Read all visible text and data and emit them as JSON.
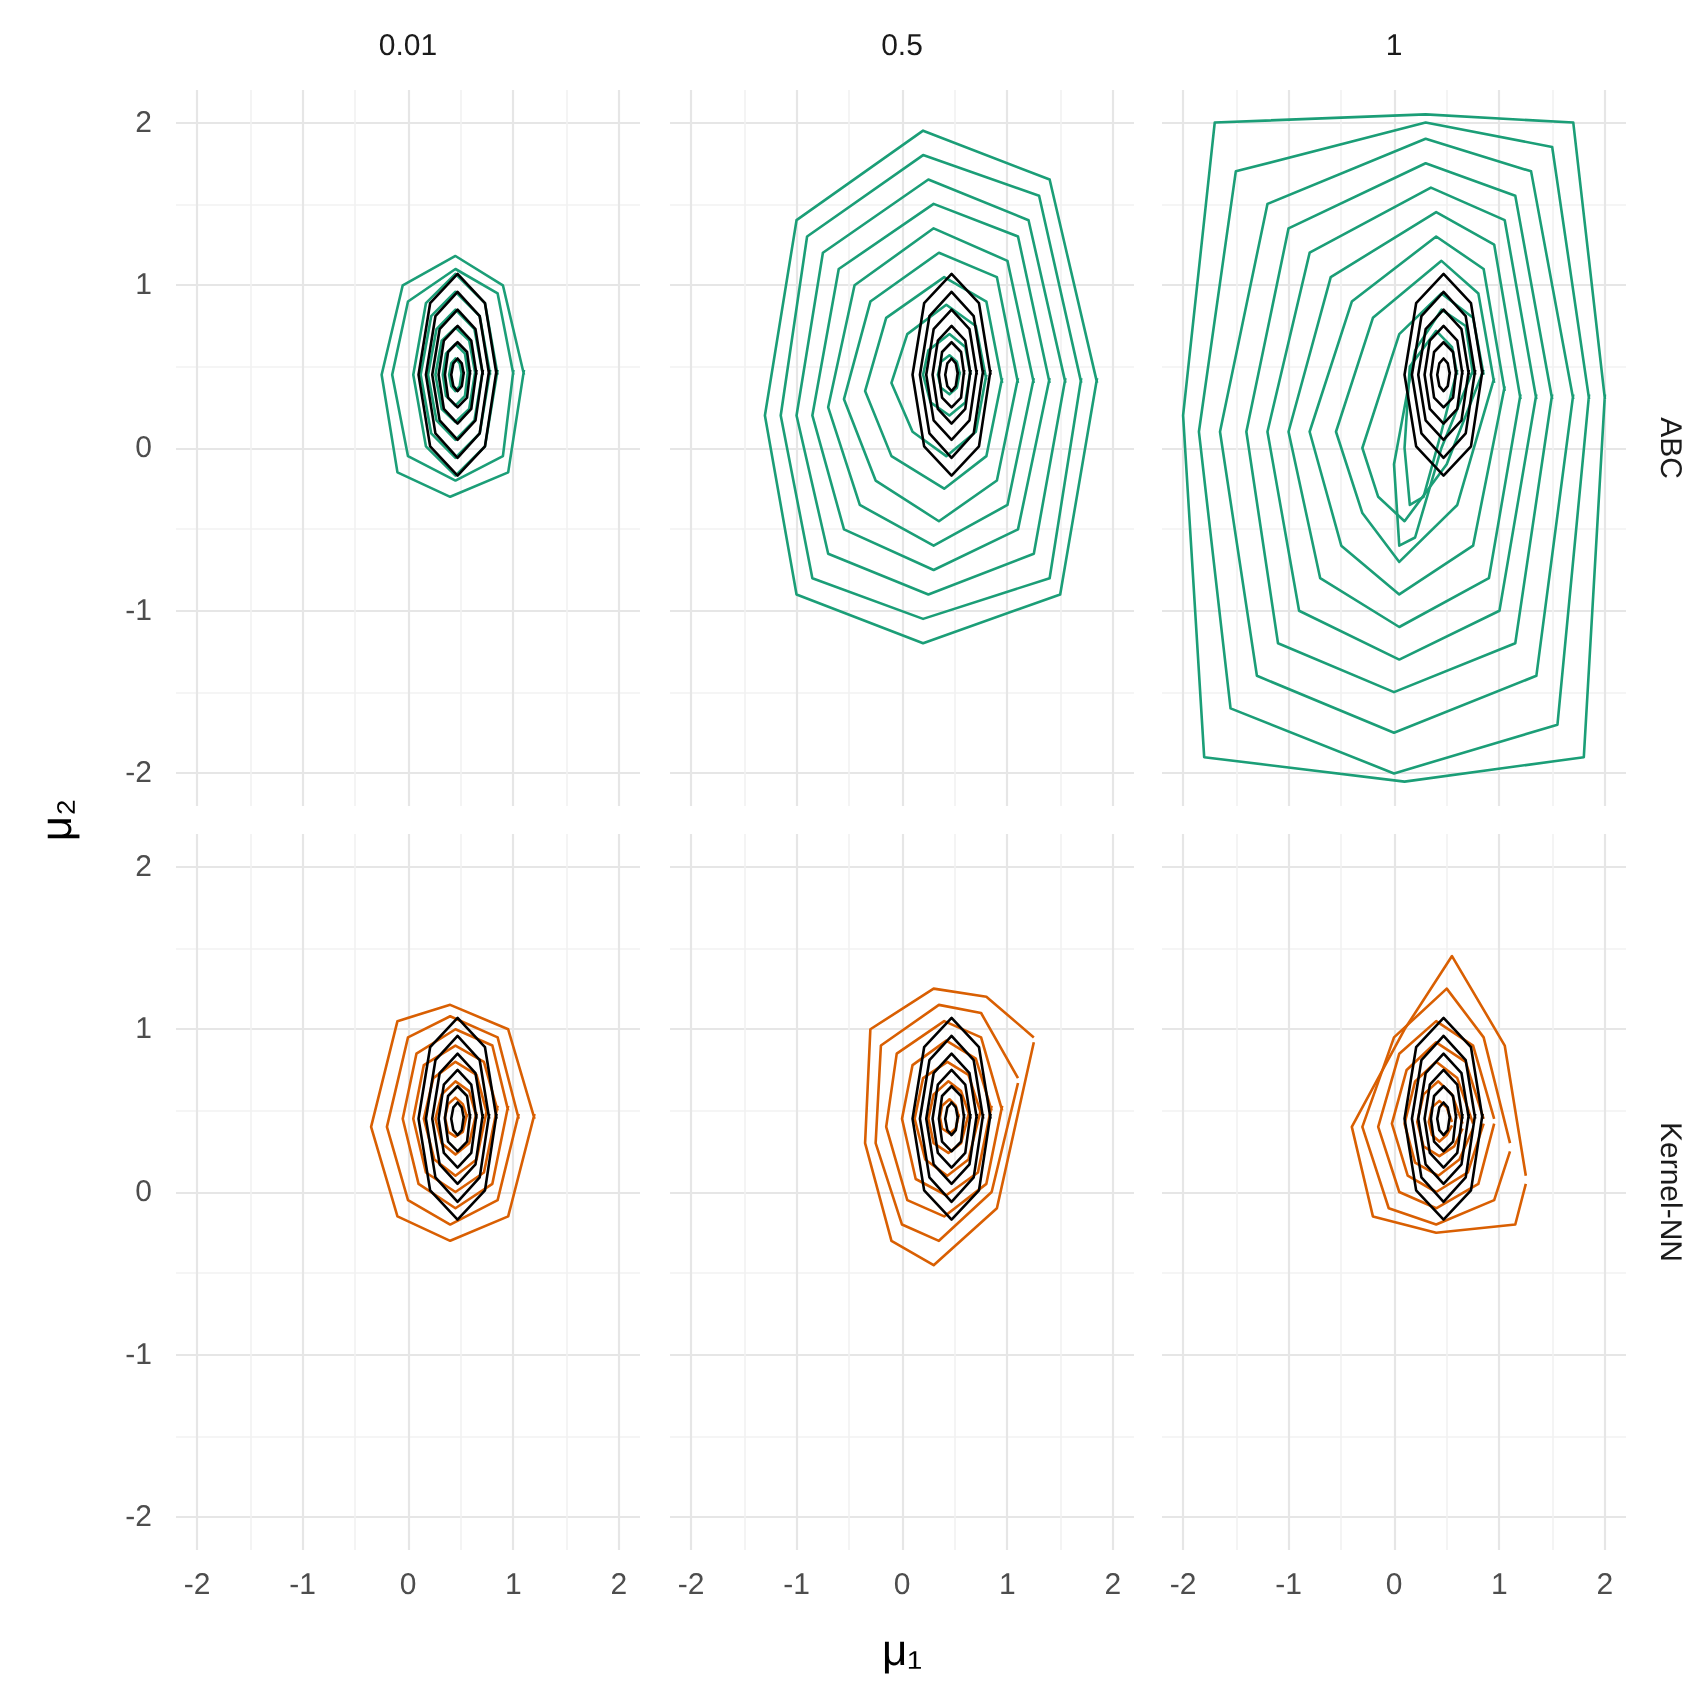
{
  "chart_data": [
    {
      "type": "line",
      "title": "0.01",
      "xlim": [
        -2.2,
        2.2
      ],
      "ylim": [
        -2.2,
        2.2
      ],
      "xticks": [
        -2,
        -1,
        0,
        1,
        2
      ],
      "yticks": [
        -2,
        -1,
        0,
        1,
        2
      ],
      "grid": true,
      "tick_labels": "y",
      "series": [
        {
          "color": "#000000",
          "x": [
            0.84,
            0.73,
            0.47,
            0.21,
            0.1,
            0.21,
            0.47,
            0.73,
            0.84
          ],
          "values": [
            0.45,
            0.89,
            1.07,
            0.89,
            0.45,
            0.01,
            -0.17,
            0.01,
            0.48
          ]
        },
        {
          "color": "#000000",
          "x": [
            0.77,
            0.68,
            0.47,
            0.26,
            0.17,
            0.26,
            0.47,
            0.68,
            0.77
          ],
          "values": [
            0.45,
            0.81,
            0.96,
            0.81,
            0.45,
            0.09,
            -0.06,
            0.09,
            0.48
          ]
        },
        {
          "color": "#000000",
          "x": [
            0.71,
            0.64,
            0.47,
            0.3,
            0.23,
            0.3,
            0.47,
            0.64,
            0.71
          ],
          "values": [
            0.45,
            0.73,
            0.85,
            0.73,
            0.45,
            0.17,
            0.05,
            0.17,
            0.48
          ]
        },
        {
          "color": "#000000",
          "x": [
            0.65,
            0.6,
            0.47,
            0.34,
            0.29,
            0.34,
            0.47,
            0.6,
            0.65
          ],
          "values": [
            0.45,
            0.66,
            0.75,
            0.66,
            0.45,
            0.24,
            0.15,
            0.24,
            0.48
          ]
        },
        {
          "color": "#000000",
          "x": [
            0.59,
            0.56,
            0.47,
            0.38,
            0.35,
            0.38,
            0.47,
            0.56,
            0.59
          ],
          "values": [
            0.45,
            0.59,
            0.65,
            0.59,
            0.45,
            0.31,
            0.25,
            0.31,
            0.48
          ]
        },
        {
          "color": "#000000",
          "x": [
            0.53,
            0.51,
            0.47,
            0.43,
            0.41,
            0.43,
            0.47,
            0.51,
            0.53
          ],
          "values": [
            0.45,
            0.52,
            0.55,
            0.52,
            0.45,
            0.38,
            0.35,
            0.38,
            0.47
          ]
        },
        {
          "color": "#1b9e77",
          "x": [
            1.1,
            0.9,
            0.45,
            -0.05,
            -0.25,
            -0.1,
            0.4,
            0.95,
            1.1
          ],
          "values": [
            0.45,
            1.0,
            1.18,
            1.0,
            0.45,
            -0.15,
            -0.3,
            -0.15,
            0.48
          ]
        },
        {
          "color": "#1b9e77",
          "x": [
            1.0,
            0.85,
            0.45,
            0.0,
            -0.15,
            0.0,
            0.45,
            0.9,
            1.0
          ],
          "values": [
            0.45,
            0.95,
            1.1,
            0.9,
            0.45,
            -0.05,
            -0.2,
            -0.05,
            0.48
          ]
        },
        {
          "color": "#1b9e77",
          "x": [
            0.85,
            0.73,
            0.45,
            0.17,
            0.05,
            0.17,
            0.45,
            0.73,
            0.85
          ],
          "values": [
            0.45,
            0.89,
            1.07,
            0.89,
            0.45,
            0.01,
            -0.17,
            0.01,
            0.48
          ]
        },
        {
          "color": "#1b9e77",
          "x": [
            0.78,
            0.68,
            0.45,
            0.22,
            0.12,
            0.22,
            0.45,
            0.68,
            0.78
          ],
          "values": [
            0.45,
            0.81,
            0.96,
            0.81,
            0.45,
            0.09,
            -0.06,
            0.09,
            0.48
          ]
        },
        {
          "color": "#1b9e77",
          "x": [
            0.71,
            0.63,
            0.45,
            0.27,
            0.19,
            0.27,
            0.45,
            0.63,
            0.71
          ],
          "values": [
            0.45,
            0.73,
            0.85,
            0.73,
            0.45,
            0.17,
            0.05,
            0.17,
            0.48
          ]
        },
        {
          "color": "#1b9e77",
          "x": [
            0.64,
            0.58,
            0.45,
            0.32,
            0.26,
            0.32,
            0.45,
            0.58,
            0.64
          ],
          "values": [
            0.45,
            0.66,
            0.74,
            0.66,
            0.45,
            0.24,
            0.16,
            0.24,
            0.48
          ]
        },
        {
          "color": "#1b9e77",
          "x": [
            0.57,
            0.54,
            0.45,
            0.36,
            0.33,
            0.36,
            0.45,
            0.54,
            0.57
          ],
          "values": [
            0.45,
            0.58,
            0.64,
            0.58,
            0.45,
            0.32,
            0.26,
            0.32,
            0.48
          ]
        },
        {
          "color": "#1b9e77",
          "x": [
            0.51,
            0.49,
            0.45,
            0.41,
            0.39,
            0.41,
            0.45,
            0.49,
            0.51
          ],
          "values": [
            0.45,
            0.52,
            0.55,
            0.52,
            0.45,
            0.38,
            0.35,
            0.38,
            0.47
          ]
        }
      ]
    },
    {
      "type": "line",
      "title": "0.5",
      "xlim": [
        -2.2,
        2.2
      ],
      "ylim": [
        -2.2,
        2.2
      ],
      "xticks": [
        -2,
        -1,
        0,
        1,
        2
      ],
      "yticks": [
        -2,
        -1,
        0,
        1,
        2
      ],
      "grid": true,
      "tick_labels": false,
      "series": [
        {
          "color": "#1b9e77",
          "x": [
            1.85,
            1.4,
            0.2,
            -1.0,
            -1.3,
            -1.0,
            0.2,
            1.5,
            1.85
          ],
          "values": [
            0.4,
            1.65,
            1.95,
            1.4,
            0.2,
            -0.9,
            -1.2,
            -0.9,
            0.43
          ]
        },
        {
          "color": "#1b9e77",
          "x": [
            1.7,
            1.3,
            0.2,
            -0.9,
            -1.15,
            -0.85,
            0.2,
            1.4,
            1.7
          ],
          "values": [
            0.4,
            1.55,
            1.8,
            1.3,
            0.2,
            -0.8,
            -1.05,
            -0.8,
            0.43
          ]
        },
        {
          "color": "#1b9e77",
          "x": [
            1.55,
            1.2,
            0.25,
            -0.75,
            -1.0,
            -0.7,
            0.25,
            1.25,
            1.55
          ],
          "values": [
            0.4,
            1.4,
            1.65,
            1.2,
            0.2,
            -0.65,
            -0.9,
            -0.65,
            0.43
          ]
        },
        {
          "color": "#1b9e77",
          "x": [
            1.4,
            1.1,
            0.3,
            -0.6,
            -0.85,
            -0.55,
            0.3,
            1.1,
            1.4
          ],
          "values": [
            0.4,
            1.3,
            1.5,
            1.1,
            0.2,
            -0.5,
            -0.75,
            -0.5,
            0.43
          ]
        },
        {
          "color": "#1b9e77",
          "x": [
            1.25,
            1.0,
            0.3,
            -0.45,
            -0.7,
            -0.4,
            0.3,
            1.0,
            1.25
          ],
          "values": [
            0.4,
            1.15,
            1.35,
            1.0,
            0.25,
            -0.35,
            -0.6,
            -0.35,
            0.43
          ]
        },
        {
          "color": "#1b9e77",
          "x": [
            1.1,
            0.9,
            0.35,
            -0.3,
            -0.55,
            -0.25,
            0.35,
            0.9,
            1.1
          ],
          "values": [
            0.4,
            1.05,
            1.2,
            0.9,
            0.3,
            -0.2,
            -0.45,
            -0.2,
            0.43
          ]
        },
        {
          "color": "#1b9e77",
          "x": [
            0.95,
            0.8,
            0.4,
            -0.15,
            -0.35,
            -0.1,
            0.4,
            0.8,
            0.95
          ],
          "values": [
            0.4,
            0.9,
            1.05,
            0.8,
            0.35,
            -0.05,
            -0.25,
            -0.05,
            0.43
          ]
        },
        {
          "color": "#1b9e77",
          "x": [
            0.8,
            0.7,
            0.42,
            0.05,
            -0.1,
            0.1,
            0.42,
            0.7,
            0.8
          ],
          "values": [
            0.42,
            0.75,
            0.88,
            0.7,
            0.4,
            0.1,
            -0.05,
            0.1,
            0.45
          ]
        },
        {
          "color": "#1b9e77",
          "x": [
            0.65,
            0.6,
            0.45,
            0.25,
            0.2,
            0.27,
            0.45,
            0.6,
            0.65
          ],
          "values": [
            0.45,
            0.62,
            0.7,
            0.6,
            0.45,
            0.28,
            0.2,
            0.28,
            0.48
          ]
        },
        {
          "color": "#1b9e77",
          "x": [
            0.55,
            0.52,
            0.45,
            0.37,
            0.34,
            0.37,
            0.45,
            0.52,
            0.55
          ],
          "values": [
            0.45,
            0.53,
            0.57,
            0.53,
            0.45,
            0.37,
            0.33,
            0.37,
            0.47
          ]
        },
        {
          "color": "#000000",
          "x": [
            0.84,
            0.73,
            0.47,
            0.21,
            0.1,
            0.21,
            0.47,
            0.73,
            0.84
          ],
          "values": [
            0.45,
            0.89,
            1.07,
            0.89,
            0.45,
            0.01,
            -0.17,
            0.01,
            0.48
          ]
        },
        {
          "color": "#000000",
          "x": [
            0.77,
            0.68,
            0.47,
            0.26,
            0.17,
            0.26,
            0.47,
            0.68,
            0.77
          ],
          "values": [
            0.45,
            0.81,
            0.96,
            0.81,
            0.45,
            0.09,
            -0.06,
            0.09,
            0.48
          ]
        },
        {
          "color": "#000000",
          "x": [
            0.71,
            0.64,
            0.47,
            0.3,
            0.23,
            0.3,
            0.47,
            0.64,
            0.71
          ],
          "values": [
            0.45,
            0.73,
            0.85,
            0.73,
            0.45,
            0.17,
            0.05,
            0.17,
            0.48
          ]
        },
        {
          "color": "#000000",
          "x": [
            0.65,
            0.6,
            0.47,
            0.34,
            0.29,
            0.34,
            0.47,
            0.6,
            0.65
          ],
          "values": [
            0.45,
            0.66,
            0.75,
            0.66,
            0.45,
            0.24,
            0.15,
            0.24,
            0.48
          ]
        },
        {
          "color": "#000000",
          "x": [
            0.59,
            0.56,
            0.47,
            0.38,
            0.35,
            0.38,
            0.47,
            0.56,
            0.59
          ],
          "values": [
            0.45,
            0.59,
            0.65,
            0.59,
            0.45,
            0.31,
            0.25,
            0.31,
            0.48
          ]
        },
        {
          "color": "#000000",
          "x": [
            0.53,
            0.51,
            0.47,
            0.43,
            0.41,
            0.43,
            0.47,
            0.51,
            0.53
          ],
          "values": [
            0.45,
            0.52,
            0.55,
            0.52,
            0.45,
            0.38,
            0.35,
            0.38,
            0.47
          ]
        }
      ]
    },
    {
      "type": "line",
      "title": "1",
      "annotations": [
        "ABC"
      ],
      "xlim": [
        -2.2,
        2.2
      ],
      "ylim": [
        -2.2,
        2.2
      ],
      "xticks": [
        -2,
        -1,
        0,
        1,
        2
      ],
      "yticks": [
        -2,
        -1,
        0,
        1,
        2
      ],
      "grid": true,
      "tick_labels": false,
      "series": [
        {
          "color": "#1b9e77",
          "x": [
            2.0,
            1.7,
            0.3,
            -1.7,
            -2.0,
            -1.8,
            0.1,
            1.8,
            2.0
          ],
          "values": [
            0.3,
            2.0,
            2.05,
            2.0,
            0.2,
            -1.9,
            -2.05,
            -1.9,
            0.33
          ]
        },
        {
          "color": "#1b9e77",
          "x": [
            1.85,
            1.5,
            0.3,
            -1.5,
            -1.85,
            -1.55,
            0.0,
            1.55,
            1.85
          ],
          "values": [
            0.3,
            1.85,
            2.0,
            1.7,
            0.1,
            -1.6,
            -2.0,
            -1.7,
            0.33
          ]
        },
        {
          "color": "#1b9e77",
          "x": [
            1.7,
            1.3,
            0.3,
            -1.2,
            -1.65,
            -1.3,
            0.0,
            1.35,
            1.7
          ],
          "values": [
            0.3,
            1.7,
            1.9,
            1.5,
            0.1,
            -1.4,
            -1.75,
            -1.4,
            0.33
          ]
        },
        {
          "color": "#1b9e77",
          "x": [
            1.5,
            1.15,
            0.3,
            -1.0,
            -1.4,
            -1.1,
            0.0,
            1.15,
            1.5
          ],
          "values": [
            0.3,
            1.55,
            1.75,
            1.35,
            0.1,
            -1.2,
            -1.5,
            -1.2,
            0.33
          ]
        },
        {
          "color": "#1b9e77",
          "x": [
            1.35,
            1.05,
            0.35,
            -0.8,
            -1.2,
            -0.9,
            0.05,
            1.0,
            1.35
          ],
          "values": [
            0.3,
            1.4,
            1.6,
            1.2,
            0.1,
            -1.0,
            -1.3,
            -1.0,
            0.33
          ]
        },
        {
          "color": "#1b9e77",
          "x": [
            1.2,
            0.95,
            0.4,
            -0.6,
            -1.0,
            -0.7,
            0.05,
            0.9,
            1.2
          ],
          "values": [
            0.3,
            1.25,
            1.45,
            1.05,
            0.1,
            -0.8,
            -1.1,
            -0.8,
            0.33
          ]
        },
        {
          "color": "#1b9e77",
          "x": [
            1.05,
            0.85,
            0.4,
            -0.4,
            -0.8,
            -0.5,
            0.05,
            0.75,
            1.05
          ],
          "values": [
            0.35,
            1.1,
            1.3,
            0.9,
            0.1,
            -0.6,
            -0.9,
            -0.6,
            0.38
          ]
        },
        {
          "color": "#1b9e77",
          "x": [
            0.95,
            0.8,
            0.45,
            -0.2,
            -0.55,
            -0.3,
            0.05,
            0.6,
            0.95
          ],
          "values": [
            0.4,
            0.95,
            1.15,
            0.8,
            0.1,
            -0.4,
            -0.7,
            -0.35,
            0.43
          ]
        },
        {
          "color": "#1b9e77",
          "x": [
            0.85,
            0.75,
            0.45,
            0.05,
            -0.3,
            -0.15,
            0.1,
            0.5,
            0.85
          ],
          "values": [
            0.45,
            0.8,
            0.95,
            0.7,
            0.0,
            -0.3,
            -0.45,
            -0.1,
            0.48
          ]
        },
        {
          "color": "#1b9e77",
          "x": [
            0.75,
            0.68,
            0.45,
            0.2,
            0.0,
            0.05,
            0.2,
            0.45,
            0.75
          ],
          "values": [
            0.45,
            0.75,
            0.85,
            0.6,
            -0.1,
            -0.6,
            -0.55,
            0.0,
            0.48
          ]
        },
        {
          "color": "#1b9e77",
          "x": [
            0.6,
            0.55,
            0.4,
            0.15,
            0.1,
            0.15,
            0.28,
            0.45,
            0.6
          ],
          "values": [
            0.45,
            0.62,
            0.72,
            0.5,
            0.0,
            -0.35,
            -0.3,
            0.1,
            0.48
          ]
        },
        {
          "color": "#000000",
          "x": [
            0.84,
            0.73,
            0.47,
            0.21,
            0.1,
            0.21,
            0.47,
            0.73,
            0.84
          ],
          "values": [
            0.45,
            0.89,
            1.07,
            0.89,
            0.45,
            0.01,
            -0.17,
            0.01,
            0.48
          ]
        },
        {
          "color": "#000000",
          "x": [
            0.77,
            0.68,
            0.47,
            0.26,
            0.17,
            0.26,
            0.47,
            0.68,
            0.77
          ],
          "values": [
            0.45,
            0.81,
            0.96,
            0.81,
            0.45,
            0.09,
            -0.06,
            0.09,
            0.48
          ]
        },
        {
          "color": "#000000",
          "x": [
            0.71,
            0.64,
            0.47,
            0.3,
            0.23,
            0.3,
            0.47,
            0.64,
            0.71
          ],
          "values": [
            0.45,
            0.73,
            0.85,
            0.73,
            0.45,
            0.17,
            0.05,
            0.17,
            0.48
          ]
        },
        {
          "color": "#000000",
          "x": [
            0.65,
            0.6,
            0.47,
            0.34,
            0.29,
            0.34,
            0.47,
            0.6,
            0.65
          ],
          "values": [
            0.45,
            0.66,
            0.75,
            0.66,
            0.45,
            0.24,
            0.15,
            0.24,
            0.48
          ]
        },
        {
          "color": "#000000",
          "x": [
            0.59,
            0.56,
            0.47,
            0.38,
            0.35,
            0.38,
            0.47,
            0.56,
            0.59
          ],
          "values": [
            0.45,
            0.59,
            0.65,
            0.59,
            0.45,
            0.31,
            0.25,
            0.31,
            0.48
          ]
        },
        {
          "color": "#000000",
          "x": [
            0.53,
            0.51,
            0.47,
            0.43,
            0.41,
            0.43,
            0.47,
            0.51,
            0.53
          ],
          "values": [
            0.45,
            0.52,
            0.55,
            0.52,
            0.45,
            0.38,
            0.35,
            0.38,
            0.47
          ]
        }
      ]
    },
    {
      "type": "line",
      "ylabel": "μ₂",
      "xlim": [
        -2.2,
        2.2
      ],
      "ylim": [
        -2.2,
        2.2
      ],
      "xticks": [
        -2,
        -1,
        0,
        1,
        2
      ],
      "yticks": [
        -2,
        -1,
        0,
        1,
        2
      ],
      "grid": true,
      "series": [
        {
          "color": "#d95f02",
          "x": [
            1.2,
            0.95,
            0.4,
            -0.1,
            -0.35,
            -0.1,
            0.4,
            0.95,
            1.2
          ],
          "values": [
            0.45,
            1.0,
            1.15,
            1.05,
            0.4,
            -0.15,
            -0.3,
            -0.15,
            0.48
          ]
        },
        {
          "color": "#d95f02",
          "x": [
            1.05,
            0.85,
            0.4,
            0.0,
            -0.2,
            0.0,
            0.4,
            0.85,
            1.05
          ],
          "values": [
            0.45,
            0.95,
            1.08,
            0.95,
            0.4,
            -0.05,
            -0.2,
            -0.05,
            0.48
          ]
        },
        {
          "color": "#d95f02",
          "x": [
            0.95,
            0.8,
            0.45,
            0.08,
            -0.05,
            0.1,
            0.45,
            0.8,
            0.95
          ],
          "values": [
            0.5,
            0.9,
            1.0,
            0.85,
            0.45,
            0.05,
            -0.1,
            0.05,
            0.53
          ]
        },
        {
          "color": "#d95f02",
          "x": [
            0.85,
            0.72,
            0.45,
            0.15,
            0.05,
            0.17,
            0.45,
            0.72,
            0.85
          ],
          "values": [
            0.5,
            0.8,
            0.9,
            0.78,
            0.45,
            0.12,
            0.0,
            0.12,
            0.53
          ]
        },
        {
          "color": "#d95f02",
          "x": [
            0.75,
            0.65,
            0.45,
            0.24,
            0.15,
            0.25,
            0.45,
            0.65,
            0.75
          ],
          "values": [
            0.48,
            0.72,
            0.8,
            0.7,
            0.45,
            0.2,
            0.1,
            0.2,
            0.51
          ]
        },
        {
          "color": "#d95f02",
          "x": [
            0.65,
            0.58,
            0.45,
            0.32,
            0.26,
            0.32,
            0.45,
            0.58,
            0.65
          ],
          "values": [
            0.46,
            0.62,
            0.68,
            0.6,
            0.45,
            0.3,
            0.23,
            0.3,
            0.49
          ]
        },
        {
          "color": "#d95f02",
          "x": [
            0.56,
            0.52,
            0.45,
            0.38,
            0.35,
            0.38,
            0.45,
            0.52,
            0.56
          ],
          "values": [
            0.46,
            0.54,
            0.58,
            0.54,
            0.46,
            0.37,
            0.34,
            0.37,
            0.48
          ]
        },
        {
          "color": "#000000",
          "x": [
            0.84,
            0.73,
            0.47,
            0.21,
            0.1,
            0.21,
            0.47,
            0.73,
            0.84
          ],
          "values": [
            0.45,
            0.89,
            1.07,
            0.89,
            0.45,
            0.01,
            -0.17,
            0.01,
            0.48
          ]
        },
        {
          "color": "#000000",
          "x": [
            0.77,
            0.68,
            0.47,
            0.26,
            0.17,
            0.26,
            0.47,
            0.68,
            0.77
          ],
          "values": [
            0.45,
            0.81,
            0.96,
            0.81,
            0.45,
            0.09,
            -0.06,
            0.09,
            0.48
          ]
        },
        {
          "color": "#000000",
          "x": [
            0.71,
            0.64,
            0.47,
            0.3,
            0.23,
            0.3,
            0.47,
            0.64,
            0.71
          ],
          "values": [
            0.45,
            0.73,
            0.85,
            0.73,
            0.45,
            0.17,
            0.05,
            0.17,
            0.48
          ]
        },
        {
          "color": "#000000",
          "x": [
            0.65,
            0.6,
            0.47,
            0.34,
            0.29,
            0.34,
            0.47,
            0.6,
            0.65
          ],
          "values": [
            0.45,
            0.66,
            0.75,
            0.66,
            0.45,
            0.24,
            0.15,
            0.24,
            0.48
          ]
        },
        {
          "color": "#000000",
          "x": [
            0.59,
            0.56,
            0.47,
            0.38,
            0.35,
            0.38,
            0.47,
            0.56,
            0.59
          ],
          "values": [
            0.45,
            0.59,
            0.65,
            0.59,
            0.45,
            0.31,
            0.25,
            0.31,
            0.48
          ]
        },
        {
          "color": "#000000",
          "x": [
            0.53,
            0.51,
            0.47,
            0.43,
            0.41,
            0.43,
            0.47,
            0.51,
            0.53
          ],
          "values": [
            0.45,
            0.52,
            0.55,
            0.52,
            0.45,
            0.38,
            0.35,
            0.38,
            0.47
          ]
        }
      ]
    },
    {
      "type": "line",
      "xlabel": "μ₁",
      "xlim": [
        -2.2,
        2.2
      ],
      "ylim": [
        -2.2,
        2.2
      ],
      "xticks": [
        -2,
        -1,
        0,
        1,
        2
      ],
      "yticks": [
        -2,
        -1,
        0,
        1,
        2
      ],
      "grid": true,
      "tick_labels": "x",
      "series": [
        {
          "color": "#d95f02",
          "x": [
            1.25,
            0.8,
            0.3,
            -0.3,
            -0.35,
            -0.1,
            0.3,
            0.9,
            1.25
          ],
          "values": [
            0.95,
            1.2,
            1.25,
            1.0,
            0.3,
            -0.3,
            -0.45,
            -0.1,
            0.92
          ]
        },
        {
          "color": "#d95f02",
          "x": [
            1.1,
            0.75,
            0.35,
            -0.2,
            -0.25,
            0.0,
            0.35,
            0.85,
            1.1
          ],
          "values": [
            0.7,
            1.1,
            1.15,
            0.9,
            0.3,
            -0.2,
            -0.3,
            0.0,
            0.67
          ]
        },
        {
          "color": "#d95f02",
          "x": [
            0.95,
            0.75,
            0.4,
            -0.05,
            -0.15,
            0.05,
            0.4,
            0.8,
            0.95
          ],
          "values": [
            0.5,
            0.95,
            1.05,
            0.85,
            0.4,
            -0.05,
            -0.15,
            0.05,
            0.53
          ]
        },
        {
          "color": "#d95f02",
          "x": [
            0.85,
            0.7,
            0.42,
            0.1,
            0.0,
            0.13,
            0.42,
            0.72,
            0.85
          ],
          "values": [
            0.5,
            0.82,
            0.93,
            0.78,
            0.45,
            0.08,
            -0.02,
            0.12,
            0.53
          ]
        },
        {
          "color": "#d95f02",
          "x": [
            0.75,
            0.63,
            0.43,
            0.2,
            0.12,
            0.22,
            0.43,
            0.63,
            0.75
          ],
          "values": [
            0.48,
            0.72,
            0.8,
            0.7,
            0.45,
            0.2,
            0.1,
            0.2,
            0.51
          ]
        },
        {
          "color": "#d95f02",
          "x": [
            0.64,
            0.56,
            0.44,
            0.3,
            0.25,
            0.3,
            0.44,
            0.56,
            0.64
          ],
          "values": [
            0.47,
            0.62,
            0.68,
            0.6,
            0.45,
            0.3,
            0.24,
            0.3,
            0.5
          ]
        },
        {
          "color": "#d95f02",
          "x": [
            0.54,
            0.51,
            0.45,
            0.38,
            0.36,
            0.38,
            0.45,
            0.51,
            0.54
          ],
          "values": [
            0.46,
            0.53,
            0.57,
            0.53,
            0.46,
            0.39,
            0.36,
            0.39,
            0.48
          ]
        },
        {
          "color": "#000000",
          "x": [
            0.84,
            0.73,
            0.47,
            0.21,
            0.1,
            0.21,
            0.47,
            0.73,
            0.84
          ],
          "values": [
            0.45,
            0.89,
            1.07,
            0.89,
            0.45,
            0.01,
            -0.17,
            0.01,
            0.48
          ]
        },
        {
          "color": "#000000",
          "x": [
            0.77,
            0.68,
            0.47,
            0.26,
            0.17,
            0.26,
            0.47,
            0.68,
            0.77
          ],
          "values": [
            0.45,
            0.81,
            0.96,
            0.81,
            0.45,
            0.09,
            -0.06,
            0.09,
            0.48
          ]
        },
        {
          "color": "#000000",
          "x": [
            0.71,
            0.64,
            0.47,
            0.3,
            0.23,
            0.3,
            0.47,
            0.64,
            0.71
          ],
          "values": [
            0.45,
            0.73,
            0.85,
            0.73,
            0.45,
            0.17,
            0.05,
            0.17,
            0.48
          ]
        },
        {
          "color": "#000000",
          "x": [
            0.65,
            0.6,
            0.47,
            0.34,
            0.29,
            0.34,
            0.47,
            0.6,
            0.65
          ],
          "values": [
            0.45,
            0.66,
            0.75,
            0.66,
            0.45,
            0.24,
            0.15,
            0.24,
            0.48
          ]
        },
        {
          "color": "#000000",
          "x": [
            0.59,
            0.56,
            0.47,
            0.38,
            0.35,
            0.38,
            0.47,
            0.56,
            0.59
          ],
          "values": [
            0.45,
            0.59,
            0.65,
            0.59,
            0.45,
            0.31,
            0.25,
            0.31,
            0.48
          ]
        },
        {
          "color": "#000000",
          "x": [
            0.53,
            0.51,
            0.47,
            0.43,
            0.41,
            0.43,
            0.47,
            0.51,
            0.53
          ],
          "values": [
            0.45,
            0.52,
            0.55,
            0.52,
            0.45,
            0.38,
            0.35,
            0.38,
            0.47
          ]
        }
      ]
    },
    {
      "type": "line",
      "annotations": [
        "Kernel-NN"
      ],
      "xlim": [
        -2.2,
        2.2
      ],
      "ylim": [
        -2.2,
        2.2
      ],
      "xticks": [
        -2,
        -1,
        0,
        1,
        2
      ],
      "yticks": [
        -2,
        -1,
        0,
        1,
        2
      ],
      "grid": true,
      "tick_labels": "x",
      "series": [
        {
          "color": "#d95f02",
          "x": [
            1.25,
            1.05,
            0.55,
            0.1,
            -0.4,
            -0.2,
            0.4,
            1.15,
            1.25
          ],
          "values": [
            0.1,
            0.9,
            1.45,
            1.0,
            0.4,
            -0.15,
            -0.25,
            -0.2,
            0.05
          ]
        },
        {
          "color": "#d95f02",
          "x": [
            1.1,
            0.85,
            0.5,
            0.0,
            -0.3,
            -0.05,
            0.4,
            0.95,
            1.1
          ],
          "values": [
            0.3,
            0.95,
            1.25,
            0.95,
            0.4,
            -0.1,
            -0.2,
            -0.05,
            0.25
          ]
        },
        {
          "color": "#d95f02",
          "x": [
            0.95,
            0.75,
            0.4,
            0.05,
            -0.15,
            0.05,
            0.4,
            0.8,
            0.95
          ],
          "values": [
            0.45,
            0.9,
            1.05,
            0.85,
            0.4,
            0.0,
            -0.1,
            0.05,
            0.42
          ]
        },
        {
          "color": "#d95f02",
          "x": [
            0.85,
            0.68,
            0.4,
            0.12,
            -0.02,
            0.13,
            0.4,
            0.7,
            0.85
          ],
          "values": [
            0.45,
            0.8,
            0.92,
            0.75,
            0.42,
            0.1,
            0.0,
            0.12,
            0.42
          ]
        },
        {
          "color": "#d95f02",
          "x": [
            0.75,
            0.6,
            0.4,
            0.2,
            0.1,
            0.2,
            0.42,
            0.62,
            0.75
          ],
          "values": [
            0.42,
            0.7,
            0.8,
            0.68,
            0.42,
            0.18,
            0.1,
            0.2,
            0.39
          ]
        },
        {
          "color": "#d95f02",
          "x": [
            0.65,
            0.55,
            0.42,
            0.28,
            0.22,
            0.28,
            0.43,
            0.57,
            0.65
          ],
          "values": [
            0.42,
            0.6,
            0.68,
            0.6,
            0.43,
            0.28,
            0.22,
            0.28,
            0.39
          ]
        },
        {
          "color": "#d95f02",
          "x": [
            0.55,
            0.5,
            0.43,
            0.36,
            0.33,
            0.36,
            0.43,
            0.5,
            0.55
          ],
          "values": [
            0.43,
            0.52,
            0.56,
            0.52,
            0.43,
            0.35,
            0.31,
            0.35,
            0.41
          ]
        },
        {
          "color": "#000000",
          "x": [
            0.84,
            0.73,
            0.47,
            0.21,
            0.1,
            0.21,
            0.47,
            0.73,
            0.84
          ],
          "values": [
            0.45,
            0.89,
            1.07,
            0.89,
            0.45,
            0.01,
            -0.17,
            0.01,
            0.48
          ]
        },
        {
          "color": "#000000",
          "x": [
            0.77,
            0.68,
            0.47,
            0.26,
            0.17,
            0.26,
            0.47,
            0.68,
            0.77
          ],
          "values": [
            0.45,
            0.81,
            0.96,
            0.81,
            0.45,
            0.09,
            -0.06,
            0.09,
            0.48
          ]
        },
        {
          "color": "#000000",
          "x": [
            0.71,
            0.64,
            0.47,
            0.3,
            0.23,
            0.3,
            0.47,
            0.64,
            0.71
          ],
          "values": [
            0.45,
            0.73,
            0.85,
            0.73,
            0.45,
            0.17,
            0.05,
            0.17,
            0.48
          ]
        },
        {
          "color": "#000000",
          "x": [
            0.65,
            0.6,
            0.47,
            0.34,
            0.29,
            0.34,
            0.47,
            0.6,
            0.65
          ],
          "values": [
            0.45,
            0.66,
            0.75,
            0.66,
            0.45,
            0.24,
            0.15,
            0.24,
            0.48
          ]
        },
        {
          "color": "#000000",
          "x": [
            0.59,
            0.56,
            0.47,
            0.38,
            0.35,
            0.38,
            0.47,
            0.56,
            0.59
          ],
          "values": [
            0.45,
            0.59,
            0.65,
            0.59,
            0.45,
            0.31,
            0.25,
            0.31,
            0.48
          ]
        },
        {
          "color": "#000000",
          "x": [
            0.53,
            0.51,
            0.47,
            0.43,
            0.41,
            0.43,
            0.47,
            0.51,
            0.53
          ],
          "values": [
            0.45,
            0.52,
            0.55,
            0.52,
            0.45,
            0.38,
            0.35,
            0.38,
            0.47
          ]
        }
      ]
    }
  ]
}
